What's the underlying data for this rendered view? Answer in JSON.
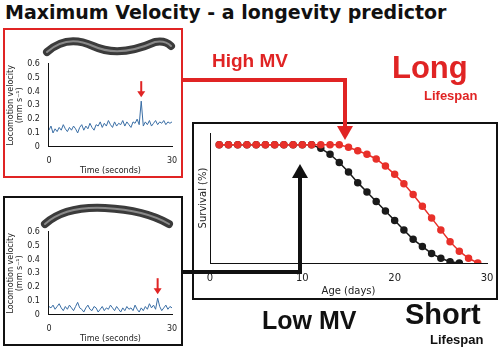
{
  "title": "Maximum Velocity - a longevity predictor",
  "labels": {
    "high_mv": "High MV",
    "long": "Long",
    "long_lifespan": "Lifespan",
    "low_mv": "Low MV",
    "short": "Short",
    "short_lifespan": "Lifespan"
  },
  "chart_data": [
    {
      "type": "line",
      "x_label": "Time (seconds)",
      "y_label": "Locomotion velocity (mm s⁻¹)",
      "x": [
        0,
        0.5,
        1,
        1.5,
        2,
        2.5,
        3,
        3.5,
        4,
        4.5,
        5,
        5.5,
        6,
        6.5,
        7,
        7.5,
        8,
        8.5,
        9,
        9.5,
        10,
        10.5,
        11,
        11.5,
        12,
        12.5,
        13,
        13.5,
        14,
        14.5,
        15,
        15.5,
        16,
        16.5,
        17,
        17.5,
        18,
        18.5,
        19,
        19.5,
        20,
        20.5,
        21,
        21.5,
        22,
        22.5,
        23,
        23.5,
        24,
        24.5,
        25,
        25.5,
        26,
        26.5,
        27,
        27.5,
        28,
        28.5,
        29,
        29.5,
        30
      ],
      "series": [
        {
          "color": "#3a6ea5",
          "marker": "none",
          "line_style": "solid",
          "values": [
            0.12,
            0.15,
            0.1,
            0.13,
            0.11,
            0.14,
            0.12,
            0.16,
            0.13,
            0.11,
            0.14,
            0.12,
            0.15,
            0.13,
            0.1,
            0.14,
            0.16,
            0.12,
            0.15,
            0.13,
            0.17,
            0.14,
            0.12,
            0.16,
            0.15,
            0.18,
            0.14,
            0.17,
            0.15,
            0.19,
            0.16,
            0.14,
            0.18,
            0.15,
            0.17,
            0.16,
            0.19,
            0.15,
            0.18,
            0.16,
            0.14,
            0.18,
            0.17,
            0.2,
            0.16,
            0.33,
            0.15,
            0.18,
            0.16,
            0.19,
            0.15,
            0.17,
            0.19,
            0.16,
            0.18,
            0.17,
            0.19,
            0.16,
            0.18,
            0.17,
            0.18
          ]
        }
      ],
      "xlim": [
        0,
        30
      ],
      "xticks": [
        0,
        30
      ],
      "ylim": [
        0,
        0.6
      ],
      "yticks": [
        0,
        0.1,
        0.2,
        0.3,
        0.4,
        0.5,
        0.6
      ],
      "grid": false
    },
    {
      "type": "line",
      "x_label": "Time (seconds)",
      "y_label": "Locomotion velocity (mm s⁻¹)",
      "x": [
        0,
        0.5,
        1,
        1.5,
        2,
        2.5,
        3,
        3.5,
        4,
        4.5,
        5,
        5.5,
        6,
        6.5,
        7,
        7.5,
        8,
        8.5,
        9,
        9.5,
        10,
        10.5,
        11,
        11.5,
        12,
        12.5,
        13,
        13.5,
        14,
        14.5,
        15,
        15.5,
        16,
        16.5,
        17,
        17.5,
        18,
        18.5,
        19,
        19.5,
        20,
        20.5,
        21,
        21.5,
        22,
        22.5,
        23,
        23.5,
        24,
        24.5,
        25,
        25.5,
        26,
        26.5,
        27,
        27.5,
        28,
        28.5,
        29,
        29.5,
        30
      ],
      "series": [
        {
          "color": "#3a6ea5",
          "marker": "none",
          "line_style": "solid",
          "values": [
            0.06,
            0.05,
            0.07,
            0.04,
            0.06,
            0.08,
            0.05,
            0.03,
            0.06,
            0.04,
            0.07,
            0.05,
            0.03,
            0.06,
            0.09,
            0.05,
            0.04,
            0.02,
            0.05,
            0.07,
            0.04,
            0.03,
            0.06,
            0.05,
            0.02,
            0.04,
            0.06,
            0.03,
            0.05,
            0.04,
            0.07,
            0.05,
            0.03,
            0.06,
            0.04,
            0.02,
            0.05,
            0.03,
            0.06,
            0.04,
            0.05,
            0.03,
            0.07,
            0.04,
            0.02,
            0.05,
            0.03,
            0.06,
            0.04,
            0.08,
            0.05,
            0.07,
            0.04,
            0.12,
            0.06,
            0.03,
            0.05,
            0.07,
            0.04,
            0.06,
            0.05
          ]
        }
      ],
      "xlim": [
        0,
        30
      ],
      "xticks": [
        0,
        30
      ],
      "ylim": [
        0,
        0.6
      ],
      "yticks": [
        0,
        0.1,
        0.2,
        0.3,
        0.4,
        0.5,
        0.6
      ],
      "grid": false
    },
    {
      "type": "line",
      "x_label": "Age (days)",
      "y_label": "Survival (%)",
      "x": [
        1,
        2,
        3,
        4,
        5,
        6,
        7,
        8,
        9,
        10,
        11,
        12,
        13,
        14,
        15,
        16,
        17,
        18,
        19,
        20,
        21,
        22,
        23,
        24,
        25,
        26,
        27,
        28,
        29
      ],
      "series": [
        {
          "color": "#e8302a",
          "marker": "circle",
          "line_style": "solid",
          "values": [
            100,
            100,
            100,
            100,
            100,
            100,
            100,
            100,
            100,
            100,
            100,
            100,
            100,
            100,
            98,
            95,
            92,
            88,
            82,
            75,
            67,
            58,
            48,
            38,
            28,
            18,
            10,
            4,
            0
          ]
        },
        {
          "color": "#1a1a1a",
          "marker": "circle",
          "line_style": "solid",
          "values": [
            100,
            100,
            100,
            100,
            100,
            100,
            100,
            100,
            100,
            100,
            100,
            97,
            92,
            85,
            77,
            68,
            60,
            52,
            44,
            36,
            28,
            20,
            14,
            8,
            4,
            1,
            0,
            null,
            null
          ]
        }
      ],
      "xlim": [
        0,
        30
      ],
      "xticks": [
        0,
        10,
        20,
        30
      ],
      "ylim": [
        0,
        110
      ],
      "tick_labels": "x",
      "grid": false
    }
  ]
}
